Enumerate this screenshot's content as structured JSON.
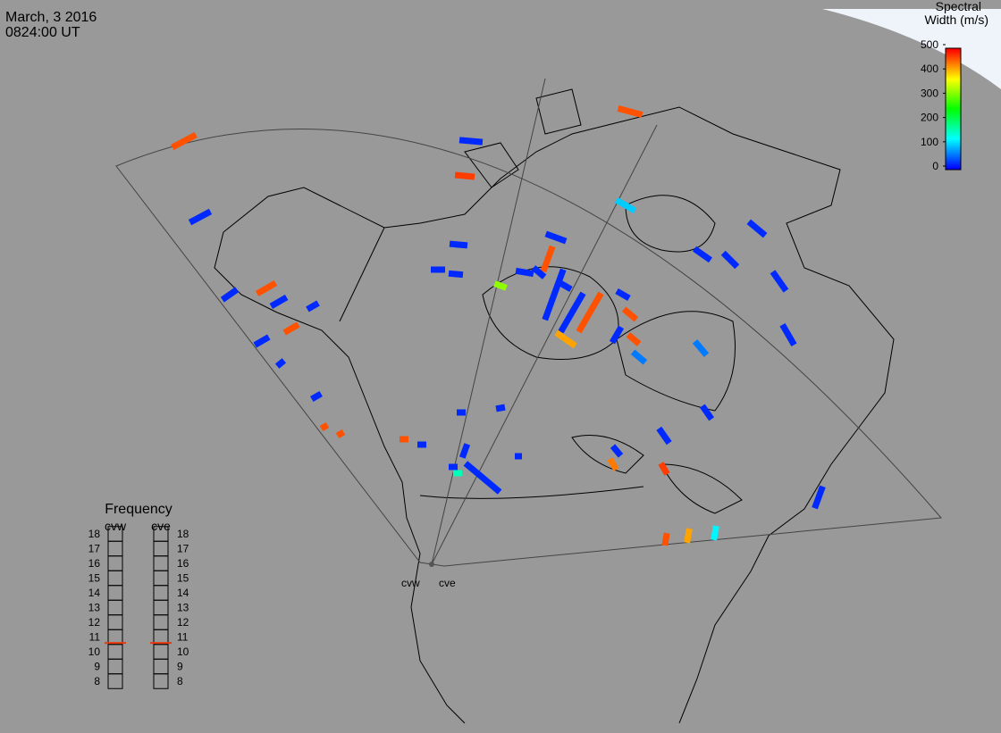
{
  "header": {
    "date": "March, 3 2016",
    "time": "0824:00 UT"
  },
  "colorbar": {
    "title_line1": "Spectral",
    "title_line2": "Width (m/s)",
    "lim": [
      0,
      500
    ],
    "ticks": [
      0,
      100,
      200,
      300,
      400,
      500
    ]
  },
  "frequency": {
    "title": "Frequency",
    "radars": [
      "cvw",
      "cve"
    ],
    "lim": [
      8,
      18
    ],
    "ticks": [
      8,
      9,
      10,
      11,
      12,
      13,
      14,
      15,
      16,
      17,
      18
    ],
    "values": [
      10.6,
      10.6
    ]
  },
  "sites": [
    "cvw",
    "cve"
  ],
  "echoes": [
    460,
    20,
    20,
    460,
    20,
    20,
    460,
    20,
    20,
    20,
    460,
    460,
    20,
    470,
    20,
    20,
    20,
    20,
    460,
    20,
    20,
    320,
    20,
    20,
    20,
    460,
    20,
    460,
    20,
    460,
    420,
    60,
    460,
    100,
    20,
    20,
    20,
    20,
    20,
    60,
    20,
    20,
    470,
    20,
    440,
    20,
    20,
    20,
    20,
    20,
    460,
    20,
    20,
    160,
    420,
    460,
    120,
    20
  ]
}
